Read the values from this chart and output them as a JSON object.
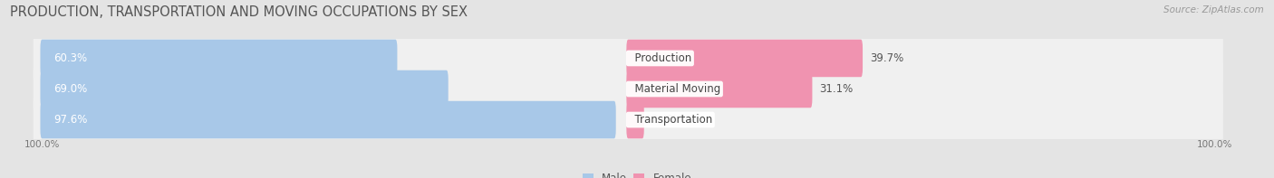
{
  "title": "PRODUCTION, TRANSPORTATION AND MOVING OCCUPATIONS BY SEX",
  "source": "Source: ZipAtlas.com",
  "categories": [
    "Transportation",
    "Material Moving",
    "Production"
  ],
  "male_values": [
    97.6,
    69.0,
    60.3
  ],
  "female_values": [
    2.4,
    31.1,
    39.7
  ],
  "male_color": "#a8c8e8",
  "female_color": "#f093b0",
  "background_color": "#e4e4e4",
  "row_background_color": "#f0f0f0",
  "legend_male_color": "#a8c8e8",
  "legend_female_color": "#f093b0",
  "title_fontsize": 10.5,
  "source_fontsize": 7.5,
  "label_fontsize": 8.5,
  "axis_label_fontsize": 7.5,
  "bar_height": 0.62
}
